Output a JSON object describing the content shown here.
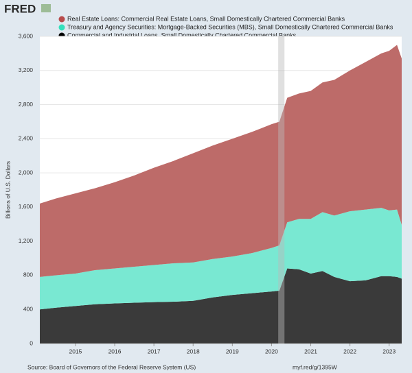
{
  "header": {
    "logo": "FRED"
  },
  "chart_data": {
    "type": "stacked-area",
    "y_label": "Billions of U.S. Dollars",
    "x": [
      2014.09,
      2014.5,
      2015,
      2015.5,
      2016,
      2016.5,
      2017,
      2017.5,
      2018,
      2018.5,
      2019,
      2019.5,
      2020,
      2020.2,
      2020.4,
      2020.7,
      2021,
      2021.3,
      2021.6,
      2022,
      2022.4,
      2022.8,
      2023,
      2023.2,
      2023.32
    ],
    "series": [
      {
        "name": "Commercial and Industrial Loans, Small Domestically Chartered Commercial Banks",
        "color": "#000000",
        "fill": "#3a3a3a",
        "values": [
          400,
          420,
          440,
          460,
          470,
          478,
          485,
          490,
          500,
          540,
          570,
          590,
          610,
          620,
          880,
          870,
          820,
          850,
          780,
          730,
          740,
          790,
          790,
          780,
          760
        ]
      },
      {
        "name": "Treasury and Agency Securities: Mortgage-Backed Securities (MBS), Small Domestically Chartered Commercial Banks",
        "color": "#36e0bc",
        "fill": "#79e8d2",
        "values": [
          380,
          380,
          380,
          400,
          410,
          422,
          435,
          450,
          450,
          450,
          450,
          470,
          510,
          530,
          540,
          590,
          640,
          690,
          720,
          820,
          830,
          800,
          770,
          790,
          630
        ]
      },
      {
        "name": "Real Estate Loans: Commercial Real Estate Loans, Small Domestically Chartered Commercial Banks",
        "color": "#b84b4b",
        "fill": "#bd6b69",
        "values": [
          860,
          900,
          940,
          960,
          1010,
          1070,
          1140,
          1200,
          1280,
          1330,
          1380,
          1420,
          1450,
          1450,
          1460,
          1470,
          1500,
          1520,
          1590,
          1650,
          1730,
          1810,
          1870,
          1930,
          1950
        ]
      }
    ],
    "recession": [
      2020.17,
      2020.33
    ],
    "xlim": [
      2014.09,
      2023.32
    ],
    "xticks": [
      2015,
      2016,
      2017,
      2018,
      2019,
      2020,
      2021,
      2022,
      2023
    ],
    "ylim": [
      0,
      3600
    ],
    "yticks": [
      0,
      400,
      800,
      {
        "value": 1200,
        "label": "1,200"
      },
      {
        "value": 1600,
        "label": "1,600"
      },
      {
        "value": 2000,
        "label": "2,000"
      },
      {
        "value": 2400,
        "label": "2,400"
      },
      {
        "value": 2800,
        "label": "2,800"
      },
      {
        "value": 3200,
        "label": "3,200"
      },
      {
        "value": 3600,
        "label": "3,600"
      }
    ],
    "grid": true
  },
  "footer": {
    "source": "Source: Board of Governors of the Federal Reserve System (US)",
    "link": "myf.red/g/1395W"
  }
}
